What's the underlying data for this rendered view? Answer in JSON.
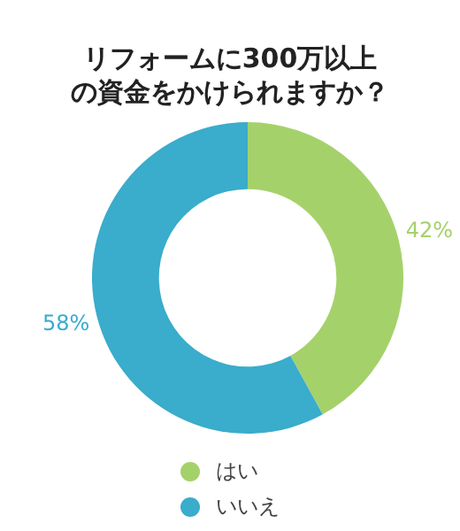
{
  "chart_data": {
    "type": "donut",
    "title": "リフォームに300万以上の資金をかけられますか？",
    "categories": [
      "はい",
      "いいえ"
    ],
    "values": [
      42,
      58
    ],
    "colors": [
      "#a5d16b",
      "#3aaccc"
    ],
    "value_labels": [
      "42%",
      "58%"
    ],
    "legend": "bottom"
  }
}
